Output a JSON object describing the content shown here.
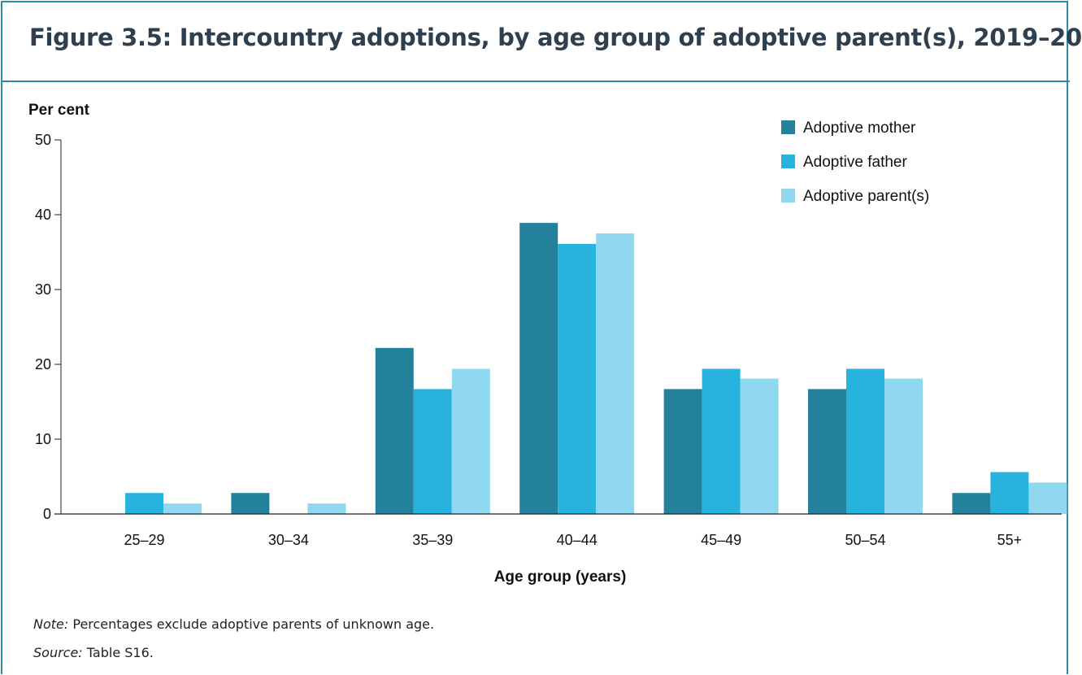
{
  "title": "Figure 3.5: Intercountry adoptions, by age group of adoptive parent(s), 2019–20",
  "note_label": "Note:",
  "note_text": "Percentages exclude adoptive parents of unknown age.",
  "source_label": "Source:",
  "source_text": "Table S16.",
  "colors": {
    "frame": "#2f8aa6",
    "title": "#2e3f4f",
    "series": [
      "#23819c",
      "#27b3dd",
      "#8fd8f0"
    ]
  },
  "chart_data": {
    "type": "bar",
    "ylabel": "Per cent",
    "xlabel": "Age group (years)",
    "ylim": [
      0,
      50
    ],
    "yticks": [
      0,
      10,
      20,
      30,
      40,
      50
    ],
    "grid": false,
    "legend_position": "top-right",
    "categories": [
      "25–29",
      "30–34",
      "35–39",
      "40–44",
      "45–49",
      "50–54",
      "55+"
    ],
    "series": [
      {
        "name": "Adoptive mother",
        "values": [
          0,
          2.8,
          22.2,
          38.9,
          16.7,
          16.7,
          2.8
        ]
      },
      {
        "name": "Adoptive father",
        "values": [
          2.8,
          0,
          16.7,
          36.1,
          19.4,
          19.4,
          5.6
        ]
      },
      {
        "name": "Adoptive parent(s)",
        "values": [
          1.4,
          1.4,
          19.4,
          37.5,
          18.1,
          18.1,
          4.2
        ]
      }
    ]
  }
}
